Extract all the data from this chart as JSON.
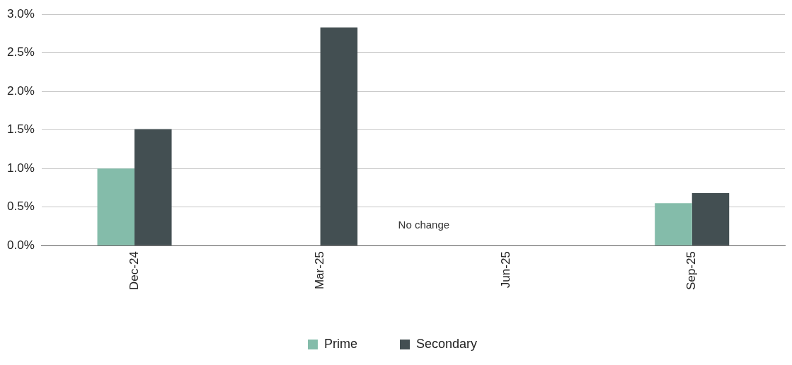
{
  "chart_data": {
    "type": "bar",
    "categories": [
      "Dec-24",
      "Mar-25",
      "Jun-25",
      "Sep-25"
    ],
    "series": [
      {
        "name": "Prime",
        "color": "#84bcaa",
        "values": [
          1.0,
          0,
          0,
          0.55
        ]
      },
      {
        "name": "Secondary",
        "color": "#434f52",
        "values": [
          1.51,
          2.83,
          0,
          0.68
        ]
      }
    ],
    "ylim": [
      0,
      3
    ],
    "yticks": [
      {
        "value": 0,
        "label": "0.0%"
      },
      {
        "value": 0.5,
        "label": "0.5%"
      },
      {
        "value": 1,
        "label": "1.0%"
      },
      {
        "value": 1.5,
        "label": "1.5%"
      },
      {
        "value": 2,
        "label": "2.0%"
      },
      {
        "value": 2.5,
        "label": "2.5%"
      },
      {
        "value": 3,
        "label": "3.0%"
      }
    ],
    "annotations": [
      "No change"
    ],
    "grid": "y",
    "legend": "bottom"
  }
}
